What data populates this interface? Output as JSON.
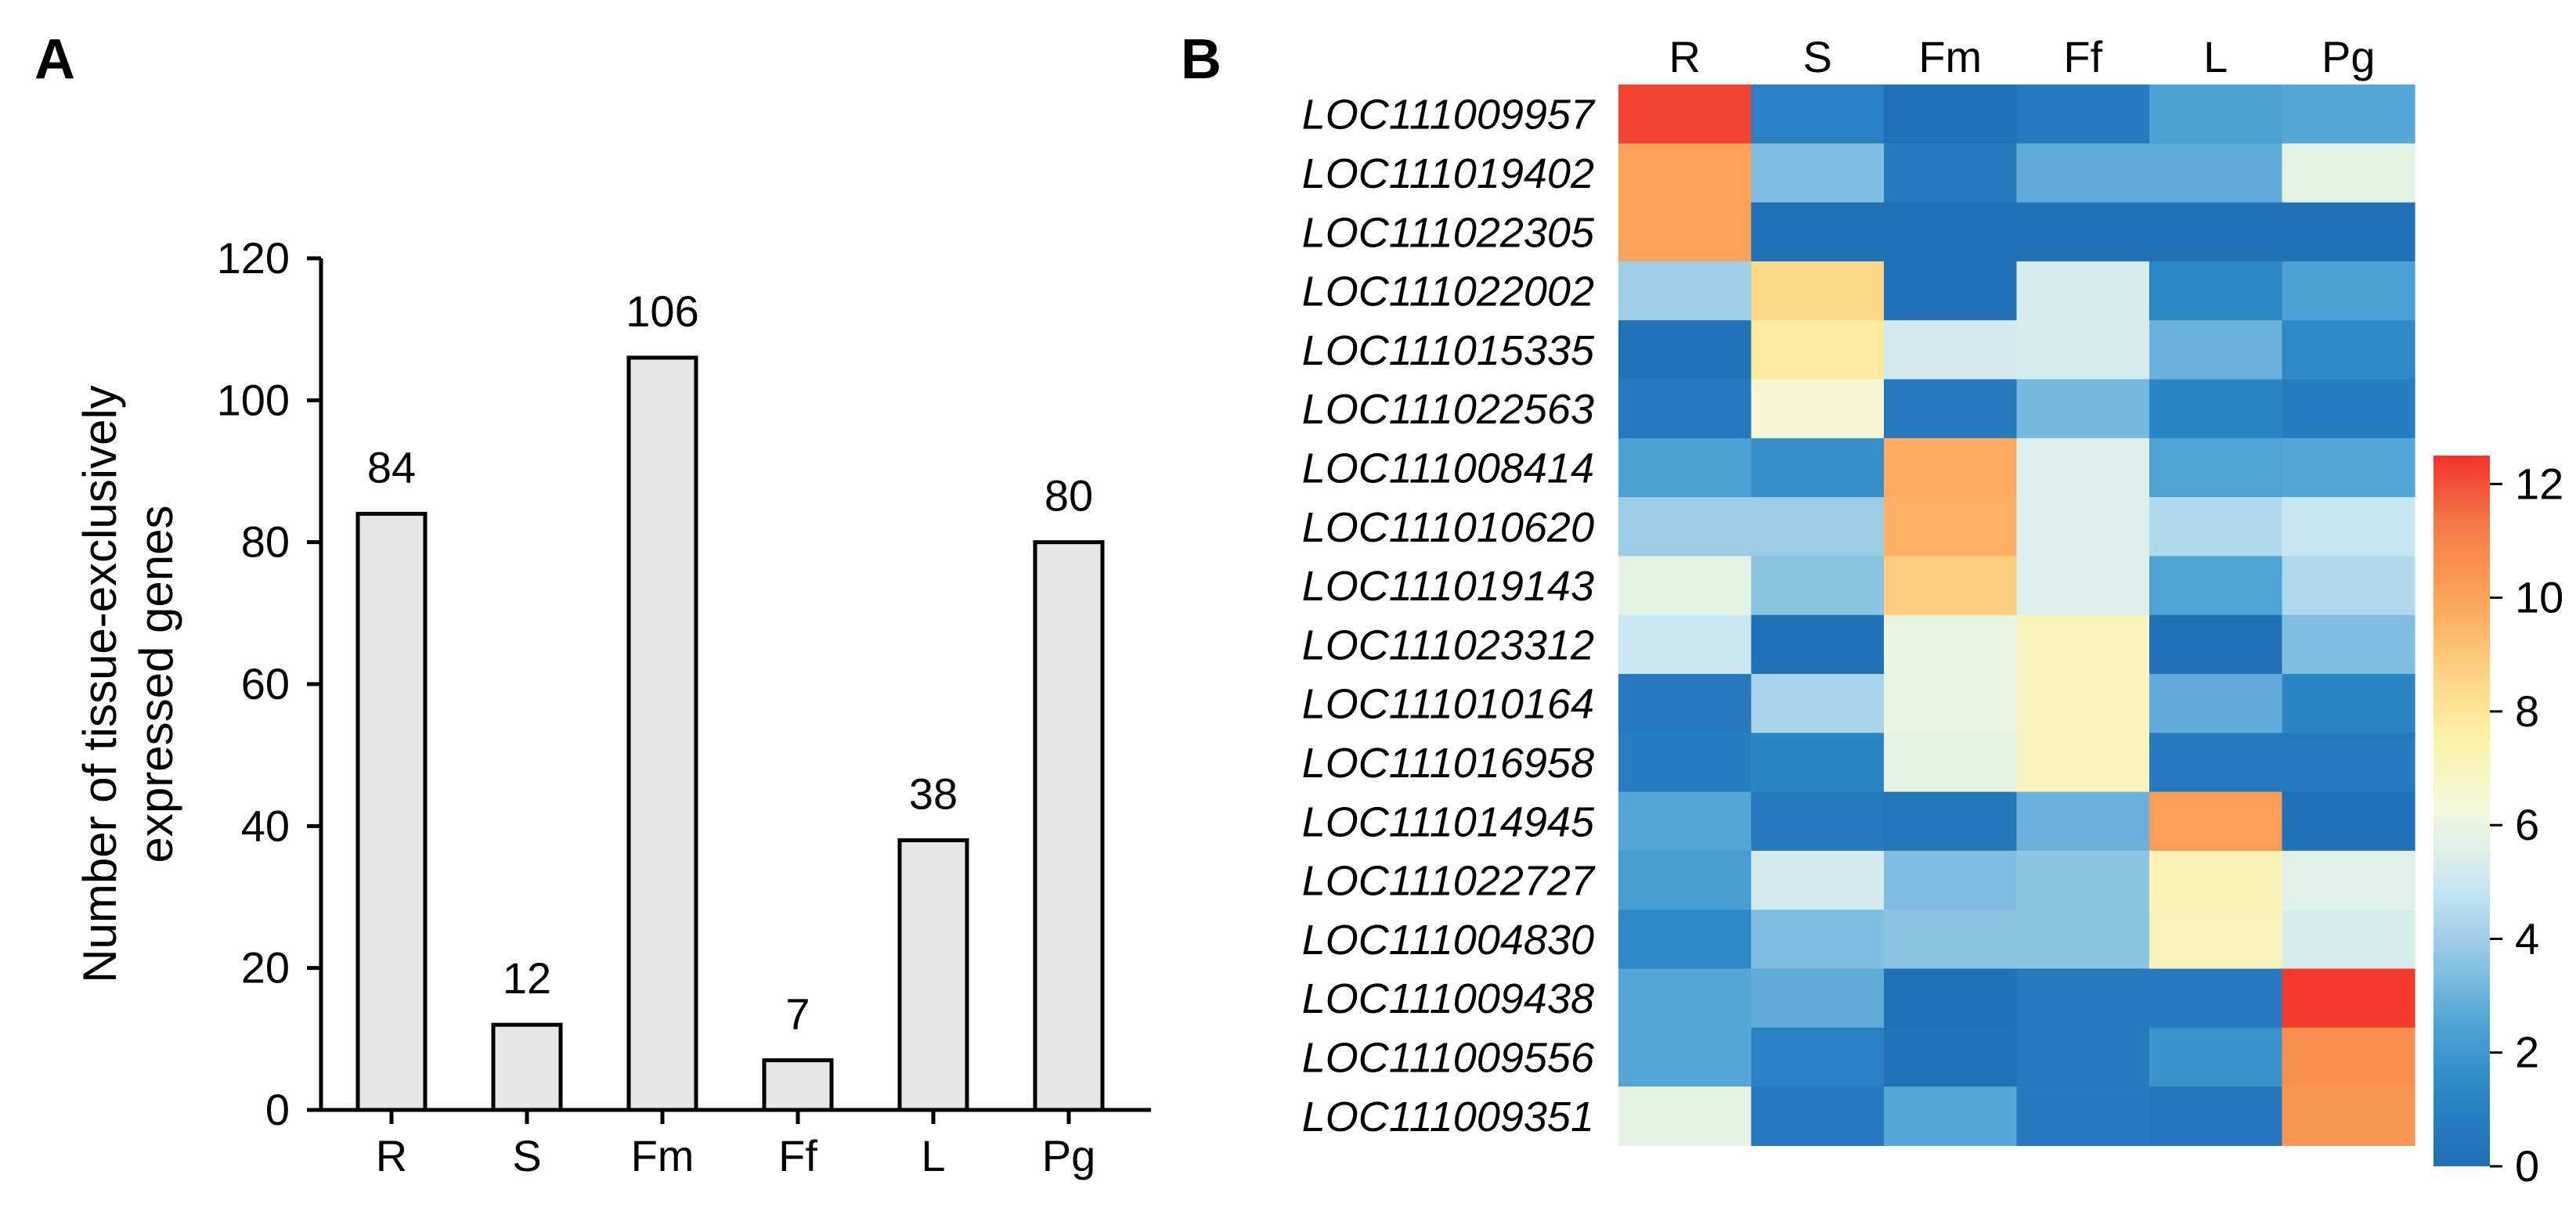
{
  "panels": {
    "a": "A",
    "b": "B"
  },
  "chart_data": [
    {
      "type": "bar",
      "categories": [
        "R",
        "S",
        "Fm",
        "Ff",
        "L",
        "Pg"
      ],
      "values": [
        84,
        12,
        106,
        7,
        38,
        80
      ],
      "value_labels": [
        "84",
        "12",
        "106",
        "7",
        "38",
        "80"
      ],
      "ylabel": [
        "Number of tissue-exclusively",
        "expressed genes"
      ],
      "xlabel": "",
      "ylim": [
        0,
        120
      ],
      "yticks": [
        "0",
        "20",
        "40",
        "60",
        "80",
        "100",
        "120"
      ],
      "bar_color": "#e6e6e6",
      "edge_color": "#000000"
    },
    {
      "type": "heatmap",
      "columns": [
        "R",
        "S",
        "Fm",
        "Ff",
        "L",
        "Pg"
      ],
      "rows": [
        "LOC111009957",
        "LOC111019402",
        "LOC111022305",
        "LOC111022002",
        "LOC111015335",
        "LOC111022563",
        "LOC111008414",
        "LOC111010620",
        "LOC111019143",
        "LOC111023312",
        "LOC111010164",
        "LOC111016958",
        "LOC111014945",
        "LOC111022727",
        "LOC111004830",
        "LOC111009438",
        "LOC111009556",
        "LOC111009351"
      ],
      "values": [
        [
          12.2,
          1.0,
          0.1,
          0.6,
          2.4,
          2.6
        ],
        [
          10.0,
          3.4,
          0.6,
          2.8,
          2.8,
          5.8
        ],
        [
          10.0,
          0.1,
          0.1,
          0.1,
          0.1,
          0.1
        ],
        [
          4.0,
          8.5,
          0.1,
          5.3,
          1.3,
          2.4
        ],
        [
          0.2,
          7.8,
          5.2,
          5.3,
          3.0,
          1.4
        ],
        [
          0.6,
          6.5,
          0.6,
          3.2,
          1.2,
          0.8
        ],
        [
          2.4,
          1.6,
          9.8,
          5.5,
          2.5,
          2.6
        ],
        [
          3.9,
          3.9,
          9.6,
          5.5,
          4.4,
          4.9
        ],
        [
          5.8,
          3.6,
          8.8,
          5.5,
          2.5,
          4.4
        ],
        [
          5.0,
          0.1,
          6.0,
          7.0,
          0.1,
          3.4
        ],
        [
          0.6,
          4.2,
          6.0,
          7.0,
          2.8,
          1.2
        ],
        [
          0.8,
          1.2,
          5.8,
          7.0,
          0.6,
          0.6
        ],
        [
          2.6,
          0.6,
          0.5,
          3.0,
          10.2,
          0.1
        ],
        [
          2.2,
          5.2,
          3.4,
          3.6,
          7.2,
          5.6
        ],
        [
          1.4,
          3.4,
          3.6,
          3.6,
          7.0,
          5.4
        ],
        [
          2.6,
          2.8,
          0.1,
          0.6,
          0.6,
          12.4
        ],
        [
          2.6,
          1.0,
          0.2,
          0.6,
          1.8,
          10.6
        ],
        [
          5.8,
          0.6,
          2.6,
          0.7,
          0.5,
          10.4
        ]
      ],
      "colorbar": {
        "min": 0,
        "max": 12.5,
        "ticks": [
          "0",
          "2",
          "4",
          "6",
          "8",
          "10",
          "12"
        ],
        "stops": [
          "#1f6fb4",
          "#2b86c4",
          "#4ea3d4",
          "#93c8e4",
          "#cbe8f2",
          "#f2f8db",
          "#fdf2a8",
          "#fdd080",
          "#fca35a",
          "#f57b46",
          "#f2332b"
        ]
      }
    }
  ]
}
